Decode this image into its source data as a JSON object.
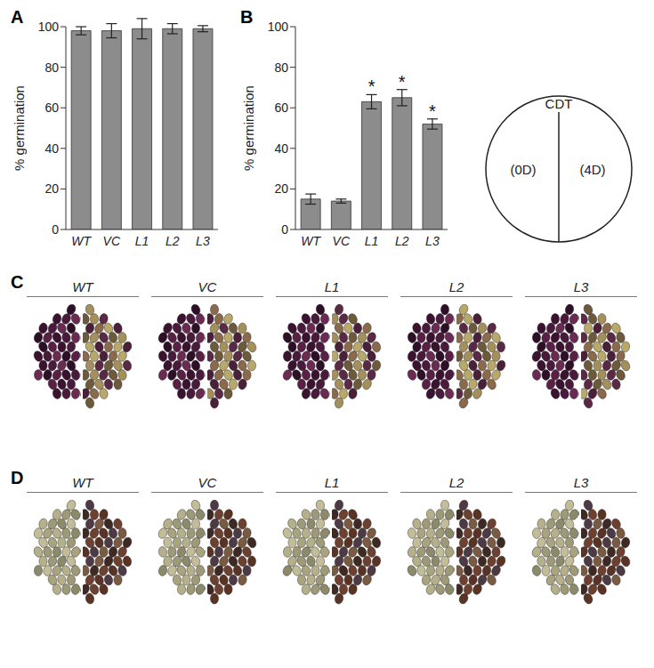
{
  "chart_data": [
    {
      "panel": "A",
      "type": "bar",
      "y_label": "% germination",
      "categories": [
        "WT",
        "VC",
        "L1",
        "L2",
        "L3"
      ],
      "values": [
        98,
        98,
        99,
        99,
        99
      ],
      "errors": [
        2,
        3.5,
        5,
        2.5,
        1.5
      ],
      "color": "#8c8c8c",
      "ylim": [
        0,
        100
      ],
      "yticks": [
        0,
        20,
        40,
        60,
        80,
        100
      ],
      "grid": false
    },
    {
      "panel": "B",
      "type": "bar",
      "y_label": "% germination",
      "categories": [
        "WT",
        "VC",
        "L1",
        "L2",
        "L3"
      ],
      "values": [
        15,
        14,
        63,
        65,
        52
      ],
      "errors": [
        2.5,
        1,
        3.5,
        4,
        2.5
      ],
      "color": "#8c8c8c",
      "ylim": [
        0,
        100
      ],
      "yticks": [
        0,
        20,
        40,
        60,
        80,
        100
      ],
      "grid": false,
      "annotations": [
        {
          "category": "L1",
          "text": "*"
        },
        {
          "category": "L2",
          "text": "*"
        },
        {
          "category": "L3",
          "text": "*"
        }
      ]
    }
  ],
  "diagram": {
    "title": "CDT",
    "left": "(0D)",
    "right": "(4D)"
  },
  "photo_panels": [
    {
      "panel": "C",
      "groups": [
        "WT",
        "VC",
        "L1",
        "L2",
        "L3"
      ]
    },
    {
      "panel": "D",
      "groups": [
        "WT",
        "VC",
        "L1",
        "L2",
        "L3"
      ]
    }
  ]
}
